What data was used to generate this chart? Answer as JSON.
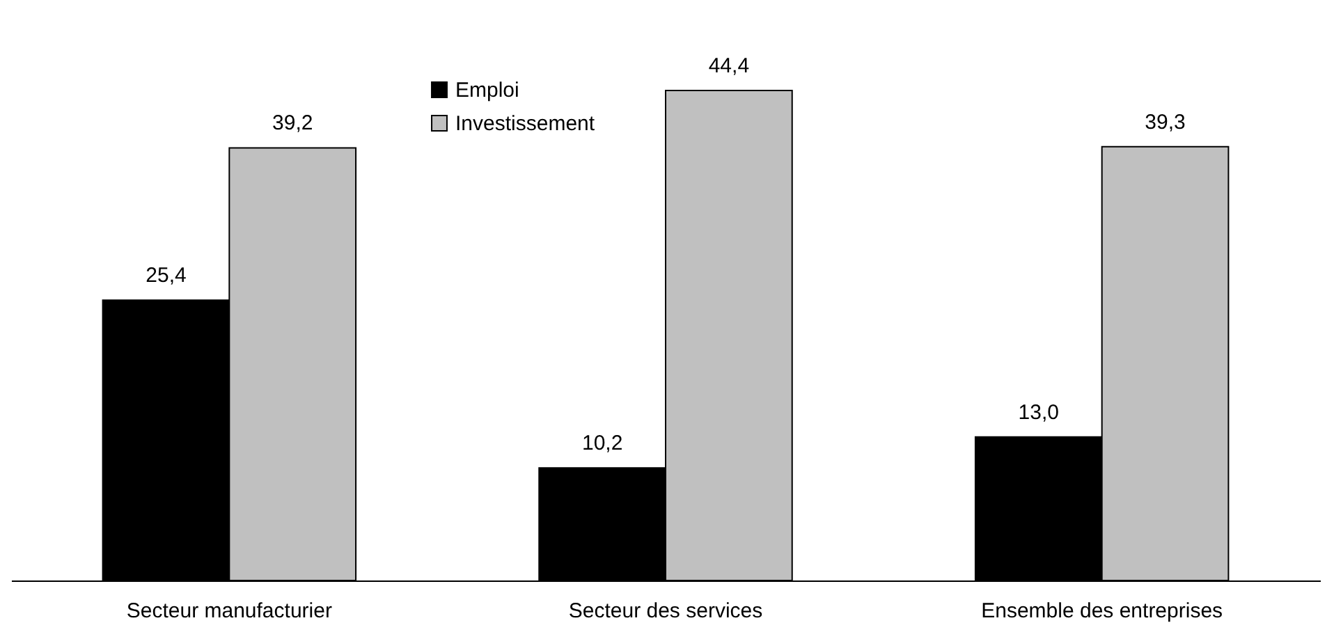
{
  "chart_data": {
    "type": "bar",
    "categories": [
      "Secteur manufacturier",
      "Secteur des services",
      "Ensemble des entreprises"
    ],
    "series": [
      {
        "name": "Emploi",
        "color": "#000000",
        "values": [
          25.4,
          10.2,
          13.0
        ],
        "value_labels": [
          "25,4",
          "10,2",
          "13,0"
        ]
      },
      {
        "name": "Investissement",
        "color": "#c0c0c0",
        "values": [
          39.2,
          44.4,
          39.3
        ],
        "value_labels": [
          "39,2",
          "44,4",
          "39,3"
        ]
      }
    ],
    "legend": "top",
    "grid": false
  }
}
